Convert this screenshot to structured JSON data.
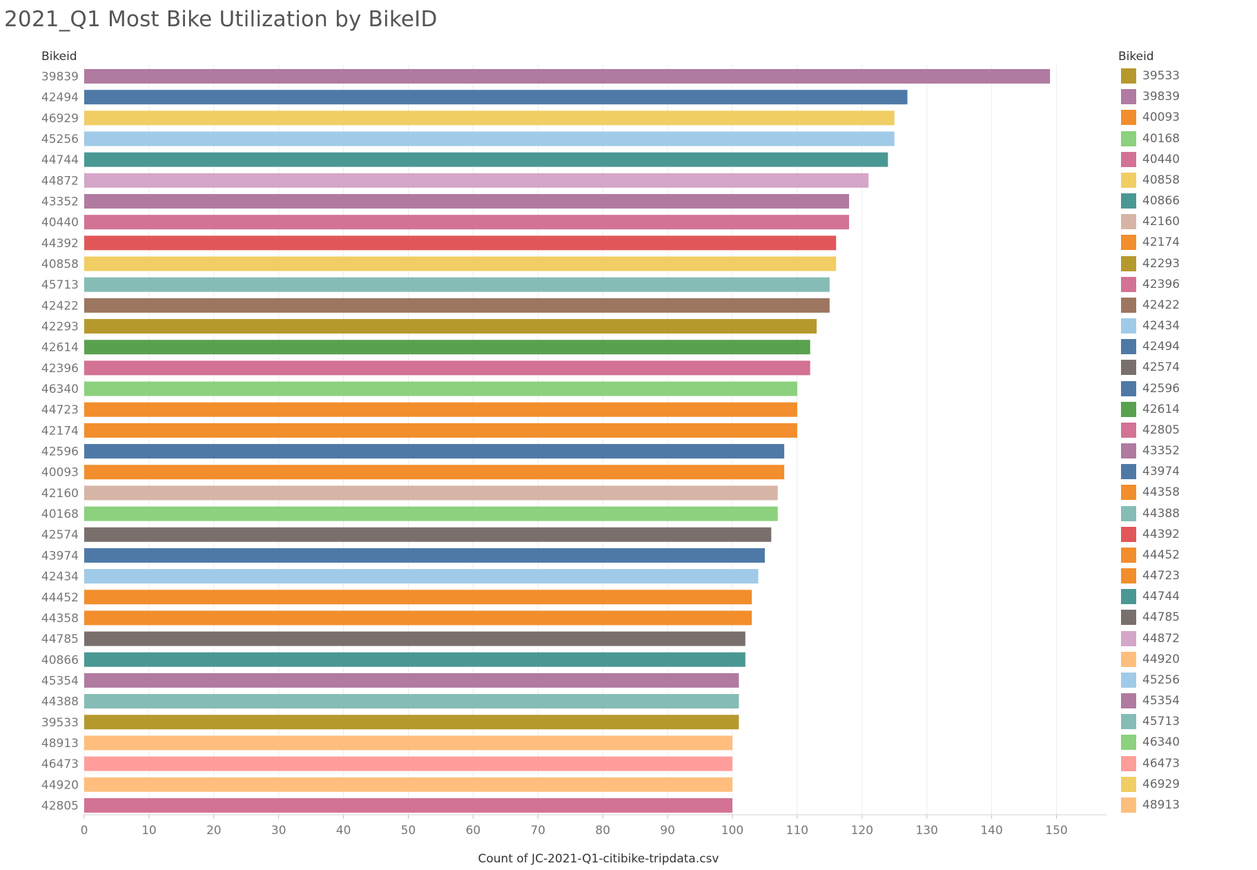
{
  "page": {
    "title": "2021_Q1 Most Bike Utilization by BikeID"
  },
  "chart_data": {
    "type": "bar",
    "orientation": "horizontal",
    "title": "2021_Q1 Most Bike Utilization by BikeID",
    "row_header": "Bikeid",
    "xlabel": "Count of JC-2021-Q1-citibike-tripdata.csv",
    "ylabel": "",
    "xlim": [
      0,
      158
    ],
    "xticks": [
      0,
      10,
      20,
      30,
      40,
      50,
      60,
      70,
      80,
      90,
      100,
      110,
      120,
      130,
      140,
      150
    ],
    "grid": "vertical",
    "legend_placement": "right",
    "categories": [
      "39839",
      "42494",
      "46929",
      "45256",
      "44744",
      "44872",
      "43352",
      "40440",
      "44392",
      "40858",
      "45713",
      "42422",
      "42293",
      "42614",
      "42396",
      "46340",
      "44723",
      "42174",
      "42596",
      "40093",
      "42160",
      "40168",
      "42574",
      "43974",
      "42434",
      "44452",
      "44358",
      "44785",
      "40866",
      "45354",
      "44388",
      "39533",
      "48913",
      "46473",
      "44920",
      "42805"
    ],
    "values": [
      149,
      127,
      125,
      125,
      124,
      121,
      118,
      118,
      116,
      116,
      115,
      115,
      113,
      112,
      112,
      110,
      110,
      110,
      108,
      108,
      107,
      107,
      106,
      105,
      104,
      103,
      103,
      102,
      102,
      101,
      101,
      101,
      100,
      100,
      100,
      100
    ],
    "legend": {
      "title": "Bikeid",
      "items": [
        {
          "label": "39533",
          "color": "#b6992d"
        },
        {
          "label": "39839",
          "color": "#b07aa1"
        },
        {
          "label": "40093",
          "color": "#f28e2b"
        },
        {
          "label": "40168",
          "color": "#8cd17d"
        },
        {
          "label": "40440",
          "color": "#d37295"
        },
        {
          "label": "40858",
          "color": "#f1ce63"
        },
        {
          "label": "40866",
          "color": "#499894"
        },
        {
          "label": "42160",
          "color": "#d7b5a6"
        },
        {
          "label": "42174",
          "color": "#f28e2b"
        },
        {
          "label": "42293",
          "color": "#b6992d"
        },
        {
          "label": "42396",
          "color": "#d37295"
        },
        {
          "label": "42422",
          "color": "#9d7660"
        },
        {
          "label": "42434",
          "color": "#a0cbe8"
        },
        {
          "label": "42494",
          "color": "#4e79a7"
        },
        {
          "label": "42574",
          "color": "#79706e"
        },
        {
          "label": "42596",
          "color": "#4e79a7"
        },
        {
          "label": "42614",
          "color": "#59a14f"
        },
        {
          "label": "42805",
          "color": "#d37295"
        },
        {
          "label": "43352",
          "color": "#b07aa1"
        },
        {
          "label": "43974",
          "color": "#4e79a7"
        },
        {
          "label": "44358",
          "color": "#f28e2b"
        },
        {
          "label": "44388",
          "color": "#86bcb6"
        },
        {
          "label": "44392",
          "color": "#e15759"
        },
        {
          "label": "44452",
          "color": "#f28e2b"
        },
        {
          "label": "44723",
          "color": "#f28e2b"
        },
        {
          "label": "44744",
          "color": "#499894"
        },
        {
          "label": "44785",
          "color": "#79706e"
        },
        {
          "label": "44872",
          "color": "#d4a6c8"
        },
        {
          "label": "44920",
          "color": "#ffbe7d"
        },
        {
          "label": "45256",
          "color": "#a0cbe8"
        },
        {
          "label": "45354",
          "color": "#b07aa1"
        },
        {
          "label": "45713",
          "color": "#86bcb6"
        },
        {
          "label": "46340",
          "color": "#8cd17d"
        },
        {
          "label": "46473",
          "color": "#ff9d9a"
        },
        {
          "label": "46929",
          "color": "#f1ce63"
        },
        {
          "label": "48913",
          "color": "#ffbe7d"
        }
      ]
    }
  }
}
